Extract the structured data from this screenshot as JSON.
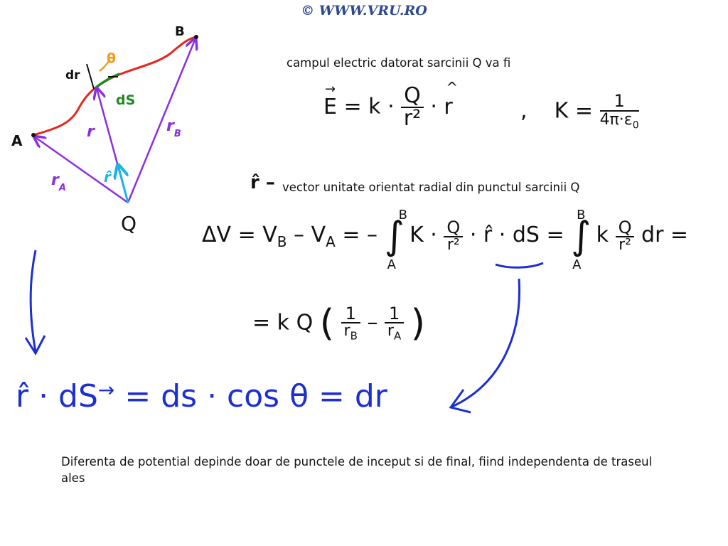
{
  "watermark": "© WWW.VRU.RO",
  "intro_text": "campul electric datorat sarcinii Q va fi",
  "rhat_definition": "vector unitate orientat radial din punctul sarcinii Q",
  "conclusion": "Diferenta de potential depinde doar de punctele de inceput si de final, fiind independenta de traseul ales",
  "diagram": {
    "point_A": "A",
    "point_B": "B",
    "charge": "Q",
    "label_r": "r",
    "label_rA": "r",
    "sub_A": "A",
    "label_rB": "r",
    "sub_B": "B",
    "label_rhat": "r̂",
    "label_ds": "dS",
    "label_dr": "dr",
    "label_theta": "θ"
  },
  "equations": {
    "E_field": "E = k · Q/r² · r̂",
    "K_const": "K = 1/(4π·ε₀)",
    "deltaV": "ΔV = V_B − V_A = − ∫ k·Q/r² · r̂·dS = − ∫ k Q/r² dr =",
    "result": "= k Q (1/r_B − 1/r_A)",
    "dot_product": "r̂ · dS = ds · cos θ = dr"
  },
  "colors": {
    "path": "#e8261b",
    "vectors": "#8a2fe0",
    "unit_vector": "#1eb4e6",
    "ds": "#1f8a1f",
    "theta": "#f39a17",
    "annotation": "#1c2fd0"
  }
}
